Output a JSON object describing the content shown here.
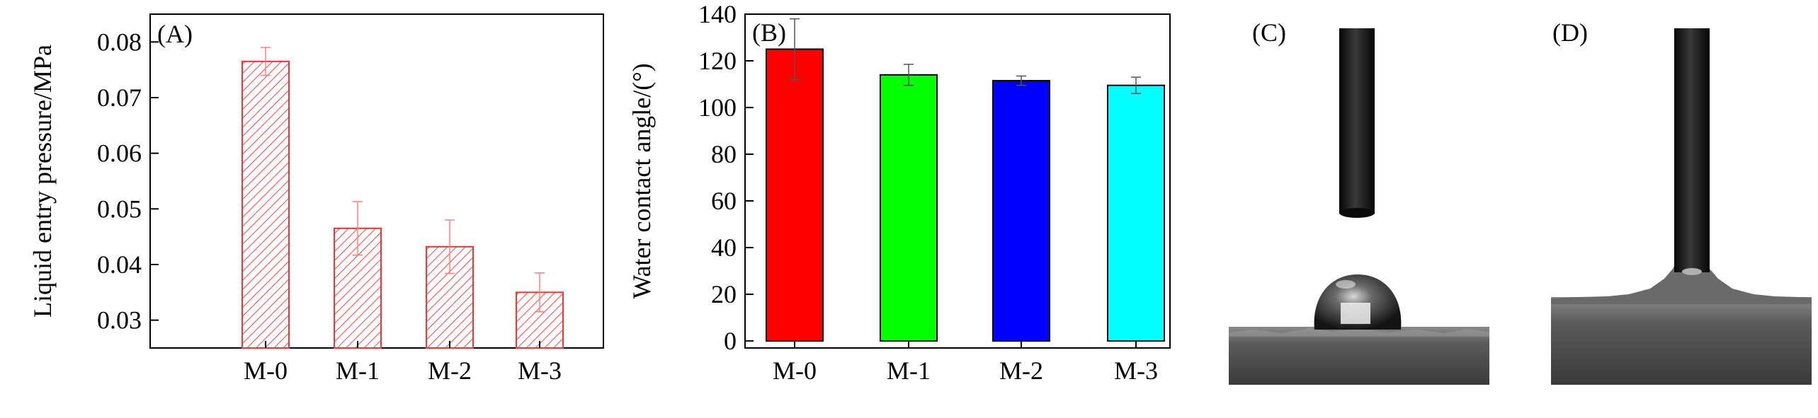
{
  "chart_data": [
    {
      "panel": "(A)",
      "type": "bar",
      "categories": [
        "M-0",
        "M-1",
        "M-2",
        "M-3"
      ],
      "values": [
        0.0765,
        0.0465,
        0.0432,
        0.035
      ],
      "errors": [
        0.0025,
        0.0048,
        0.0048,
        0.0035
      ],
      "title": "",
      "xlabel": "",
      "ylabel": "Liquid entry pressure/MPa",
      "ylim": [
        0.025,
        0.085
      ],
      "yticks": [
        "0.03",
        "0.04",
        "0.05",
        "0.06",
        "0.07",
        "0.08"
      ],
      "grid": false,
      "legend": "none",
      "bar_color": "#ff3030",
      "bar_fill": "hatched"
    },
    {
      "panel": "(B)",
      "type": "bar",
      "categories": [
        "M-0",
        "M-1",
        "M-2",
        "M-3"
      ],
      "values": [
        125,
        114,
        111.5,
        109.5
      ],
      "errors": [
        13,
        4.5,
        2,
        3.5
      ],
      "title": "",
      "xlabel": "",
      "ylabel": "Water contact angle/(°)",
      "ylim": [
        -3,
        140
      ],
      "yticks": [
        "0",
        "20",
        "40",
        "60",
        "80",
        "100",
        "120",
        "140"
      ],
      "grid": false,
      "legend": "none",
      "bar_colors": [
        "#ff0000",
        "#00ff00",
        "#0000ff",
        "#00ffff"
      ]
    }
  ],
  "photos": [
    {
      "label": "(C)",
      "content": "water droplet beaded on membrane surface below needle"
    },
    {
      "label": "(D)",
      "content": "water wetting membrane surface, needle in contact"
    }
  ]
}
